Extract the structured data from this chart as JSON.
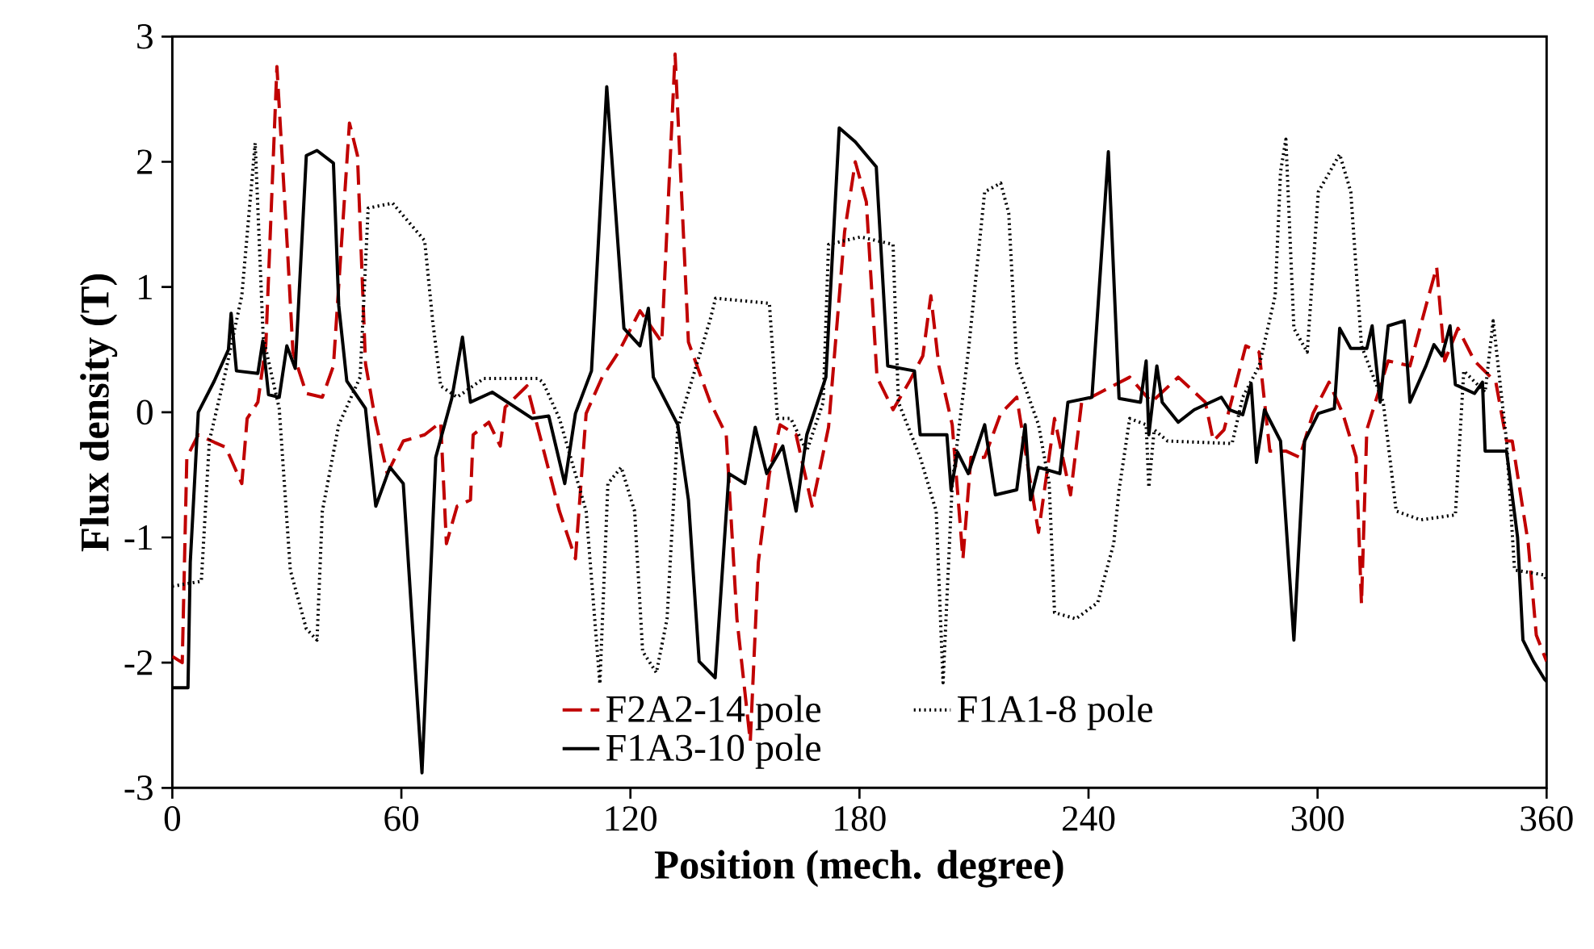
{
  "chart_data": {
    "type": "line",
    "xlabel": "Position (mech. degree)",
    "ylabel": "Flux density (T)",
    "xlim": [
      0,
      360
    ],
    "xticks": [
      0,
      60,
      120,
      180,
      240,
      300,
      360
    ],
    "ylim": [
      -3,
      3
    ],
    "yticks": [
      -3,
      -2,
      -1,
      0,
      1,
      2,
      3
    ],
    "grid": false,
    "legend": "bottom",
    "marker": "none",
    "series": [
      {
        "name": "F2A2-14 pole",
        "color": "#c00000",
        "line_style": "dashed",
        "x": [
          0,
          2.6,
          3.8,
          6.8,
          11,
          14,
          18.2,
          19.6,
          22.4,
          24.5,
          27.4,
          30.2,
          31.6,
          35.1,
          39.3,
          42.2,
          46.4,
          48.5,
          50.6,
          53.3,
          56.3,
          60.5,
          66.1,
          70.3,
          71.8,
          74.6,
          78.1,
          78.8,
          82.9,
          85.9,
          87.2,
          92.9,
          95.7,
          101.4,
          105.6,
          108.4,
          112.6,
          116.9,
          122.5,
          128.2,
          131.7,
          135.2,
          140.9,
          145.1,
          147.9,
          151.4,
          153.5,
          156.4,
          159.2,
          163.4,
          167.6,
          171.9,
          176.1,
          178.9,
          181.8,
          184.6,
          188.8,
          193,
          196.6,
          198.7,
          200.8,
          204.3,
          207.1,
          209.2,
          212.8,
          217,
          221.2,
          226.9,
          231.1,
          235.3,
          238.2,
          243.8,
          250.8,
          256.5,
          263.5,
          270.6,
          272.7,
          275.5,
          281.2,
          284.7,
          287.5,
          291.7,
          295.3,
          298.8,
          303,
          306.6,
          310.1,
          311.5,
          312.9,
          318.5,
          324.2,
          328.4,
          331.2,
          333.3,
          336.8,
          341.1,
          346.7,
          349.5,
          351,
          355.2,
          357.3,
          360
        ],
        "values": [
          -1.95,
          -2.0,
          -0.36,
          -0.18,
          -0.24,
          -0.28,
          -0.57,
          -0.05,
          0.08,
          0.54,
          2.76,
          1.28,
          0.48,
          0.15,
          0.12,
          0.37,
          2.31,
          2.05,
          0.39,
          -0.08,
          -0.49,
          -0.23,
          -0.18,
          -0.08,
          -1.05,
          -0.75,
          -0.7,
          -0.18,
          -0.08,
          -0.27,
          0.04,
          0.21,
          -0.12,
          -0.79,
          -1.17,
          -0.01,
          0.28,
          0.48,
          0.81,
          0.56,
          2.86,
          0.56,
          0.08,
          -0.18,
          -1.65,
          -2.63,
          -1.2,
          -0.49,
          -0.1,
          -0.18,
          -0.75,
          -0.12,
          1.44,
          2.0,
          1.68,
          0.28,
          0.02,
          0.24,
          0.45,
          0.93,
          0.37,
          -0.1,
          -1.17,
          -0.36,
          -0.36,
          -0.01,
          0.12,
          -0.96,
          -0.05,
          -0.66,
          0.08,
          0.17,
          0.28,
          0.08,
          0.28,
          0.08,
          -0.23,
          -0.14,
          0.53,
          0.48,
          -0.31,
          -0.31,
          -0.36,
          -0.01,
          0.24,
          -0.01,
          -0.36,
          -1.53,
          -0.14,
          0.41,
          0.37,
          0.85,
          1.16,
          0.41,
          0.67,
          0.41,
          0.24,
          -0.23,
          -0.23,
          -1.05,
          -1.78,
          -1.99
        ]
      },
      {
        "name": "F1A1-8 pole",
        "color": "#000000",
        "line_style": "dotted",
        "x": [
          0,
          7.6,
          9.7,
          14,
          18.2,
          21.7,
          23.8,
          28,
          30.9,
          35.1,
          37.9,
          39.3,
          43.6,
          49.2,
          51.3,
          57.7,
          66.1,
          68.2,
          70.3,
          74.6,
          81.6,
          95.7,
          97.1,
          101.4,
          108.4,
          112,
          114.1,
          117.6,
          121.1,
          123.2,
          126.8,
          129.6,
          132.4,
          140.9,
          142.3,
          156.4,
          158.5,
          162,
          166.2,
          170.5,
          171.9,
          180.3,
          188.8,
          190.2,
          195.9,
          200.1,
          201.9,
          204.3,
          208.5,
          212.8,
          217,
          219.1,
          221.2,
          226.9,
          229.7,
          231.1,
          236.7,
          242.4,
          246.6,
          248,
          250.8,
          255.1,
          255.8,
          257.2,
          260.7,
          277.6,
          280.4,
          284.7,
          288.9,
          290.3,
          291.7,
          293.8,
          297.3,
          300.2,
          305.8,
          308.7,
          311.5,
          317.2,
          320.6,
          327,
          336.1,
          338.3,
          343.9,
          346,
          349.5,
          351.6,
          359.4,
          360
        ],
        "values": [
          -1.39,
          -1.35,
          -0.23,
          0.33,
          0.93,
          2.15,
          0.6,
          0.03,
          -1.26,
          -1.73,
          -1.82,
          -0.79,
          -0.1,
          0.28,
          1.63,
          1.67,
          1.37,
          0.73,
          0.21,
          0.12,
          0.27,
          0.27,
          0.24,
          -0.05,
          -0.79,
          -2.17,
          -0.57,
          -0.44,
          -0.79,
          -1.91,
          -2.08,
          -1.65,
          -0.12,
          0.74,
          0.91,
          0.87,
          -0.05,
          -0.05,
          -0.31,
          0.08,
          1.34,
          1.4,
          1.34,
          0.08,
          -0.36,
          -0.79,
          -2.16,
          -0.57,
          0.48,
          1.76,
          1.83,
          1.59,
          0.39,
          -0.1,
          -0.57,
          -1.6,
          -1.65,
          -1.52,
          -1.05,
          -0.62,
          -0.05,
          -0.1,
          -0.6,
          -0.14,
          -0.23,
          -0.25,
          0.12,
          0.37,
          0.93,
          1.92,
          2.18,
          0.67,
          0.48,
          1.76,
          2.06,
          1.76,
          0.53,
          0.08,
          -0.79,
          -0.86,
          -0.82,
          0.33,
          0.16,
          0.73,
          -0.23,
          -1.26,
          -1.3,
          -1.35
        ]
      },
      {
        "name": "F1A3-10 pole",
        "color": "#000000",
        "line_style": "solid",
        "x": [
          0,
          4.1,
          4.7,
          6.8,
          11,
          14.7,
          15.4,
          16.8,
          22.4,
          23.7,
          25.2,
          28,
          30,
          32.2,
          35.1,
          37.9,
          42.2,
          43.6,
          45.7,
          50.6,
          53.3,
          57,
          60.5,
          65.4,
          69,
          73.2,
          76,
          78.1,
          83.8,
          94.3,
          98.6,
          102.8,
          105.6,
          109.8,
          113.8,
          118.3,
          122.5,
          124.7,
          126,
          132.4,
          135.2,
          138,
          142.2,
          145.8,
          150,
          152.7,
          155.7,
          159.9,
          163.4,
          166.2,
          171.2,
          174.7,
          178.9,
          184.4,
          187.4,
          194.4,
          195.9,
          202.9,
          204,
          205.7,
          208.5,
          212.8,
          215.6,
          221.2,
          223.4,
          224.8,
          226.9,
          232.5,
          234.6,
          240.9,
          245.2,
          248,
          253.6,
          255.1,
          255.8,
          257.9,
          259.3,
          263.5,
          267.7,
          274.8,
          276.9,
          280.4,
          282.6,
          284,
          286.1,
          290.3,
          293.8,
          296.6,
          300.2,
          304.4,
          305.8,
          308.7,
          312.9,
          314.3,
          316.4,
          318.5,
          322.7,
          324.2,
          328.4,
          330.5,
          332.6,
          334.7,
          336.1,
          341.1,
          343.2,
          343.9,
          349.5,
          352.4,
          353.8,
          356.6,
          359.4,
          360
        ],
        "values": [
          -2.2,
          -2.2,
          -1.2,
          0,
          0.25,
          0.5,
          0.79,
          0.33,
          0.31,
          0.57,
          0.14,
          0.12,
          0.53,
          0.35,
          2.05,
          2.09,
          1.99,
          0.85,
          0.25,
          0.03,
          -0.75,
          -0.44,
          -0.57,
          -2.88,
          -0.36,
          0.11,
          0.6,
          0.08,
          0.16,
          -0.05,
          -0.03,
          -0.57,
          -0.01,
          0.33,
          2.6,
          0.67,
          0.53,
          0.83,
          0.28,
          -0.1,
          -0.7,
          -1.99,
          -2.12,
          -0.49,
          -0.57,
          -0.12,
          -0.49,
          -0.27,
          -0.79,
          -0.18,
          0.28,
          2.27,
          2.16,
          1.96,
          0.37,
          0.33,
          -0.18,
          -0.18,
          -0.62,
          -0.32,
          -0.49,
          -0.1,
          -0.66,
          -0.62,
          -0.1,
          -0.7,
          -0.44,
          -0.49,
          0.08,
          0.12,
          2.08,
          0.11,
          0.08,
          0.41,
          -0.18,
          0.37,
          0.08,
          -0.08,
          0.02,
          0.12,
          0.02,
          -0.02,
          0.23,
          -0.4,
          0.02,
          -0.23,
          -1.82,
          -0.23,
          -0.01,
          0.03,
          0.67,
          0.51,
          0.51,
          0.69,
          0.08,
          0.69,
          0.73,
          0.08,
          0.37,
          0.54,
          0.45,
          0.69,
          0.22,
          0.15,
          0.24,
          -0.31,
          -0.31,
          -1.0,
          -1.82,
          -1.99,
          -2.13,
          -2.15
        ]
      }
    ]
  }
}
